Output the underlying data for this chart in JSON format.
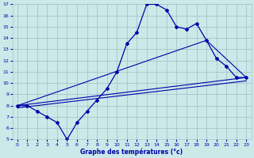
{
  "xlabel": "Graphe des températures (°c)",
  "xlim": [
    -0.5,
    23.5
  ],
  "ylim": [
    5,
    17
  ],
  "xticks": [
    0,
    1,
    2,
    3,
    4,
    5,
    6,
    7,
    8,
    9,
    10,
    11,
    12,
    13,
    14,
    15,
    16,
    17,
    18,
    19,
    20,
    21,
    22,
    23
  ],
  "yticks": [
    5,
    6,
    7,
    8,
    9,
    10,
    11,
    12,
    13,
    14,
    15,
    16,
    17
  ],
  "bg_color": "#cce8e8",
  "grid_color": "#a0c8c8",
  "line_color": "#0000aa",
  "main_x": [
    0,
    1,
    2,
    3,
    4,
    5,
    6,
    7,
    8,
    9,
    10,
    11,
    12,
    13,
    14,
    15,
    16,
    17,
    18,
    19,
    20,
    21,
    22,
    23
  ],
  "main_y": [
    8.0,
    8.0,
    7.5,
    7.0,
    6.5,
    5.0,
    6.5,
    7.5,
    8.5,
    9.5,
    11.0,
    13.5,
    14.5,
    17.0,
    17.0,
    16.5,
    15.0,
    14.8,
    15.3,
    13.8,
    12.2,
    11.5,
    10.5,
    10.5
  ],
  "trend1_x": [
    0,
    23
  ],
  "trend1_y": [
    8.0,
    10.5
  ],
  "trend2_x": [
    0,
    19,
    23
  ],
  "trend2_y": [
    8.0,
    13.8,
    10.5
  ],
  "trend3_x": [
    0,
    23
  ],
  "trend3_y": [
    7.8,
    10.2
  ]
}
